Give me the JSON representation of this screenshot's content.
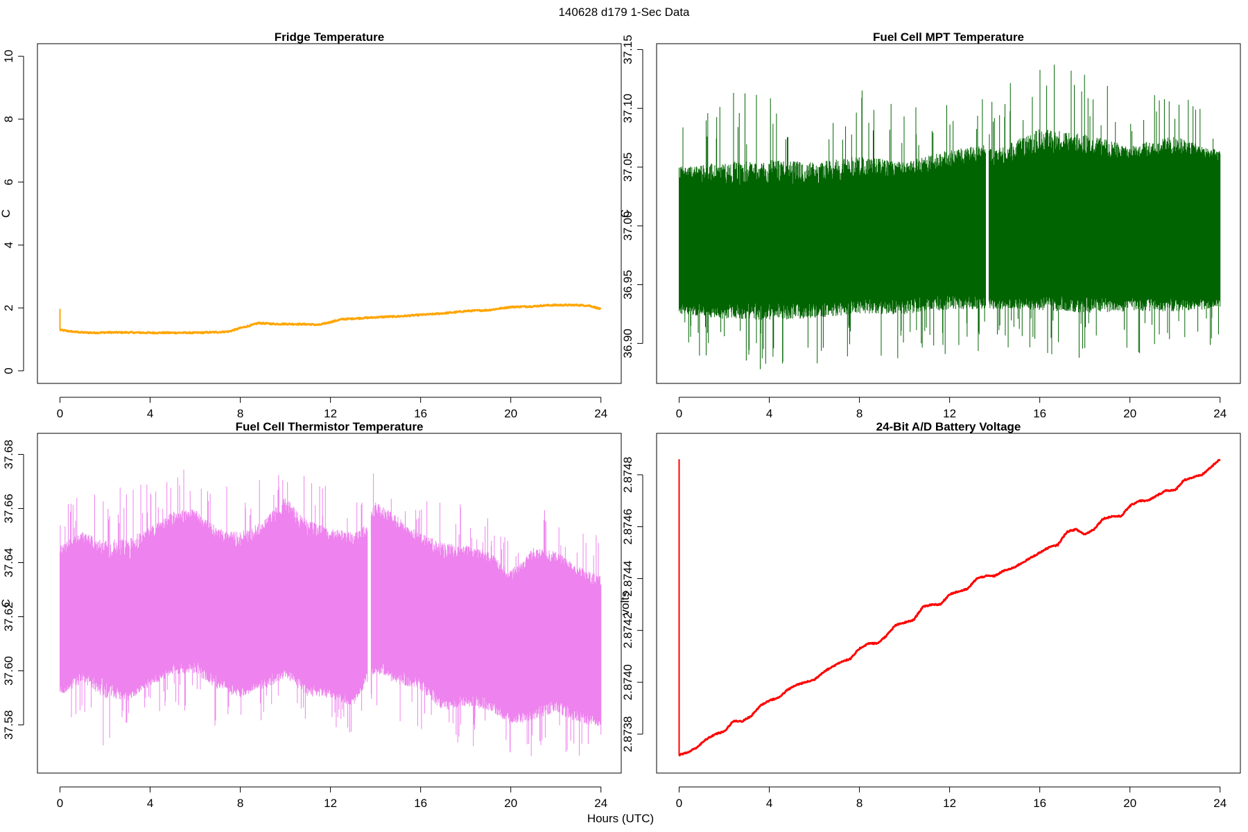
{
  "figure": {
    "title": "140628   d179   1-Sec Data",
    "xlabel": "Hours (UTC)"
  },
  "chart_data": [
    {
      "type": "line",
      "style": "line",
      "title": "Fridge Temperature",
      "xlabel": "",
      "ylabel": "C",
      "color": "#FFA500",
      "xlim": [
        -1,
        24.9
      ],
      "ylim": [
        -0.4,
        10.4
      ],
      "xticks": [
        "0",
        "4",
        "8",
        "12",
        "16",
        "20",
        "24"
      ],
      "xtick_values": [
        0,
        4,
        8,
        12,
        16,
        20,
        24
      ],
      "yticks": [
        "0",
        "2",
        "4",
        "6",
        "8",
        "10"
      ],
      "ytick_values": [
        0,
        2,
        4,
        6,
        8,
        10
      ],
      "spike": {
        "x": 0,
        "from": 1.3,
        "to": 1.97
      },
      "x": [
        0,
        0.5,
        1,
        1.5,
        2,
        3,
        4,
        5,
        6,
        7,
        7.5,
        8,
        8.5,
        8.8,
        9.5,
        10,
        11,
        11.5,
        12,
        12.5,
        13.5,
        14,
        14.5,
        15,
        16,
        16.5,
        17,
        17.5,
        18,
        19,
        20,
        21,
        21.5,
        22,
        23,
        23.5,
        24
      ],
      "y": [
        1.3,
        1.25,
        1.22,
        1.21,
        1.22,
        1.22,
        1.21,
        1.21,
        1.21,
        1.23,
        1.25,
        1.36,
        1.45,
        1.52,
        1.49,
        1.49,
        1.48,
        1.46,
        1.55,
        1.64,
        1.68,
        1.7,
        1.72,
        1.73,
        1.78,
        1.8,
        1.83,
        1.86,
        1.9,
        1.93,
        2.03,
        2.05,
        2.08,
        2.09,
        2.09,
        2.07,
        1.96
      ]
    },
    {
      "type": "line",
      "style": "noise",
      "title": "Fuel Cell MPT Temperature",
      "xlabel": "",
      "ylabel": "C",
      "color": "#006400",
      "xlim": [
        -1,
        24.9
      ],
      "ylim": [
        36.866,
        37.155
      ],
      "xticks": [
        "0",
        "4",
        "8",
        "12",
        "16",
        "20",
        "24"
      ],
      "xtick_values": [
        0,
        4,
        8,
        12,
        16,
        20,
        24
      ],
      "yticks": [
        "36.90",
        "36.95",
        "37.00",
        "37.05",
        "37.10",
        "37.15"
      ],
      "ytick_values": [
        36.9,
        36.95,
        37.0,
        37.05,
        37.1,
        37.15
      ],
      "gap": [
        13.6,
        13.75
      ],
      "x": [
        0,
        2,
        4,
        6,
        8,
        10,
        12,
        13.5,
        14,
        16,
        18,
        20,
        22,
        24
      ],
      "band_low": [
        36.935,
        36.935,
        36.935,
        36.935,
        36.938,
        36.938,
        36.942,
        36.94,
        36.94,
        36.94,
        36.94,
        36.94,
        36.94,
        36.94
      ],
      "band_high": [
        37.04,
        37.035,
        37.035,
        37.035,
        37.04,
        37.04,
        37.05,
        37.055,
        37.05,
        37.06,
        37.06,
        37.055,
        37.06,
        37.055
      ],
      "extreme_low": [
        36.895,
        36.878,
        36.874,
        36.88,
        36.886,
        36.885,
        36.89,
        36.893,
        36.896,
        36.893,
        36.883,
        36.889,
        36.888,
        36.9
      ],
      "extreme_high": [
        37.082,
        37.112,
        37.12,
        37.112,
        37.118,
        37.098,
        37.11,
        37.11,
        37.106,
        37.151,
        37.132,
        37.11,
        37.126,
        37.09
      ]
    },
    {
      "type": "line",
      "style": "noise",
      "title": "Fuel Cell Thermistor Temperature",
      "xlabel": "",
      "ylabel": "C",
      "color": "#EE82EE",
      "xlim": [
        -1,
        24.9
      ],
      "ylim": [
        37.5622,
        37.6878
      ],
      "xticks": [
        "0",
        "4",
        "8",
        "12",
        "16",
        "20",
        "24"
      ],
      "xtick_values": [
        0,
        4,
        8,
        12,
        16,
        20,
        24
      ],
      "yticks": [
        "37.58",
        "37.60",
        "37.62",
        "37.64",
        "37.66",
        "37.68"
      ],
      "ytick_values": [
        37.58,
        37.6,
        37.62,
        37.64,
        37.66,
        37.68
      ],
      "gap": [
        13.65,
        13.8
      ],
      "x": [
        0,
        1,
        2,
        3,
        4,
        5,
        6,
        7,
        8,
        9,
        10,
        11,
        12,
        13,
        13.6,
        14,
        15,
        16,
        17,
        18,
        19,
        20,
        21,
        22,
        23,
        24
      ],
      "band_low": [
        37.595,
        37.6,
        37.597,
        37.592,
        37.598,
        37.603,
        37.604,
        37.598,
        37.594,
        37.597,
        37.602,
        37.595,
        37.594,
        37.59,
        37.6,
        37.604,
        37.6,
        37.598,
        37.59,
        37.592,
        37.59,
        37.584,
        37.586,
        37.59,
        37.585,
        37.583
      ],
      "band_high": [
        37.642,
        37.646,
        37.642,
        37.64,
        37.648,
        37.653,
        37.656,
        37.648,
        37.644,
        37.65,
        37.658,
        37.65,
        37.648,
        37.646,
        37.65,
        37.658,
        37.652,
        37.647,
        37.64,
        37.642,
        37.64,
        37.632,
        37.64,
        37.64,
        37.634,
        37.63
      ],
      "extreme_low": [
        37.578,
        37.582,
        37.569,
        37.58,
        37.583,
        37.586,
        37.584,
        37.578,
        37.578,
        37.58,
        37.584,
        37.577,
        37.578,
        37.577,
        37.582,
        37.583,
        37.58,
        37.578,
        37.57,
        37.572,
        37.572,
        37.568,
        37.568,
        37.568,
        37.568,
        37.568
      ],
      "extreme_high": [
        37.662,
        37.667,
        37.667,
        37.677,
        37.668,
        37.677,
        37.672,
        37.668,
        37.673,
        37.672,
        37.684,
        37.672,
        37.669,
        37.666,
        37.667,
        37.677,
        37.672,
        37.662,
        37.669,
        37.66,
        37.657,
        37.652,
        37.662,
        37.657,
        37.652,
        37.65
      ]
    },
    {
      "type": "line",
      "style": "line",
      "title": "24-Bit A/D Battery Voltage",
      "xlabel": "",
      "ylabel": "volts",
      "color": "#FF0000",
      "xlim": [
        -1,
        24.9
      ],
      "ylim": [
        2.87365,
        2.87496
      ],
      "xticks": [
        "0",
        "4",
        "8",
        "12",
        "16",
        "20",
        "24"
      ],
      "xtick_values": [
        0,
        4,
        8,
        12,
        16,
        20,
        24
      ],
      "yticks": [
        "2.8738",
        "2.8740",
        "2.8742",
        "2.8744",
        "2.8746",
        "2.8748"
      ],
      "ytick_values": [
        2.8738,
        2.874,
        2.8742,
        2.8744,
        2.8746,
        2.8748
      ],
      "spike": {
        "x": 0,
        "from": 2.87372,
        "to": 2.87486
      },
      "x": [
        0,
        0.4,
        0.8,
        1.2,
        1.6,
        2.0,
        2.4,
        2.8,
        3.2,
        3.6,
        4.0,
        4.4,
        4.8,
        5.2,
        5.6,
        6.0,
        6.4,
        6.8,
        7.2,
        7.6,
        8.0,
        8.4,
        8.8,
        9.2,
        9.6,
        10.0,
        10.4,
        10.8,
        11.2,
        11.6,
        12.0,
        12.4,
        12.8,
        13.2,
        13.6,
        14.0,
        14.4,
        14.8,
        15.2,
        15.6,
        16.0,
        16.4,
        16.8,
        17.2,
        17.6,
        18.0,
        18.4,
        18.8,
        19.2,
        19.6,
        20.0,
        20.4,
        20.8,
        21.2,
        21.6,
        22.0,
        22.4,
        22.8,
        23.2,
        23.6,
        24.0
      ],
      "y": [
        2.87372,
        2.87373,
        2.87375,
        2.87378,
        2.8738,
        2.87381,
        2.87385,
        2.87385,
        2.87387,
        2.87391,
        2.87393,
        2.87394,
        2.87397,
        2.87399,
        2.874,
        2.87401,
        2.87404,
        2.87406,
        2.87408,
        2.87409,
        2.87413,
        2.87415,
        2.87415,
        2.87418,
        2.87422,
        2.87423,
        2.87424,
        2.87429,
        2.8743,
        2.8743,
        2.87434,
        2.87435,
        2.87436,
        2.8744,
        2.87441,
        2.87441,
        2.87443,
        2.87444,
        2.87446,
        2.87448,
        2.8745,
        2.87452,
        2.87453,
        2.87458,
        2.87459,
        2.87457,
        2.87459,
        2.87463,
        2.87464,
        2.87464,
        2.87468,
        2.8747,
        2.8747,
        2.87472,
        2.87474,
        2.87474,
        2.87478,
        2.87479,
        2.8748,
        2.87483,
        2.87486
      ]
    }
  ]
}
